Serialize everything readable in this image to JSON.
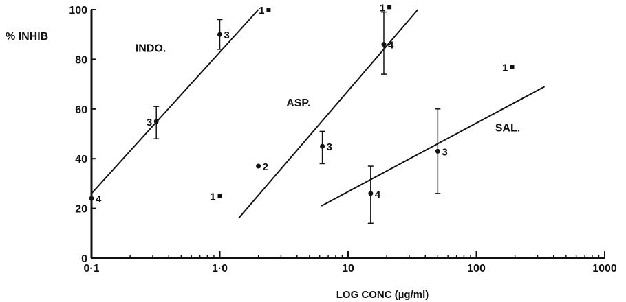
{
  "chart_data": {
    "type": "scatter",
    "x_scale": "log",
    "xlim": [
      0.1,
      1000
    ],
    "ylim": [
      0,
      100
    ],
    "xlabel": "LOG CONC (µg/ml)",
    "ylabel": "% INHIB",
    "x_tick_values": [
      0.1,
      1,
      10,
      100,
      1000
    ],
    "x_tick_labels": [
      "0·1",
      "1·0",
      "10",
      "100",
      "1000"
    ],
    "y_ticks": [
      0,
      20,
      40,
      60,
      80,
      100
    ],
    "grid": false,
    "series": [
      {
        "name": "INDO.",
        "points": [
          {
            "x": 0.1,
            "y": 24,
            "n": "4",
            "err": null
          },
          {
            "x": 0.32,
            "y": 55,
            "n": "3",
            "err": [
              48,
              61
            ]
          },
          {
            "x": 1.0,
            "y": 90,
            "n": "3",
            "err": [
              84,
              96
            ]
          },
          {
            "x": 2.4,
            "y": 100,
            "n": "1",
            "err": null
          }
        ],
        "fit": [
          [
            0.1,
            26
          ],
          [
            2.0,
            100
          ]
        ]
      },
      {
        "name": "ASP.",
        "points": [
          {
            "x": 1.0,
            "y": 25,
            "n": "1",
            "err": null
          },
          {
            "x": 2.0,
            "y": 37,
            "n": "2",
            "err": null
          },
          {
            "x": 6.3,
            "y": 45,
            "n": "3",
            "err": [
              38,
              51
            ]
          },
          {
            "x": 19,
            "y": 86,
            "n": "4",
            "err": [
              74,
              99
            ]
          },
          {
            "x": 21,
            "y": 101,
            "n": "1",
            "err": null
          }
        ],
        "fit": [
          [
            1.4,
            16
          ],
          [
            35,
            100
          ]
        ]
      },
      {
        "name": "SAL.",
        "points": [
          {
            "x": 15,
            "y": 26,
            "n": "4",
            "err": [
              14,
              37
            ]
          },
          {
            "x": 50,
            "y": 43,
            "n": "3",
            "err": [
              26,
              60
            ]
          },
          {
            "x": 190,
            "y": 77,
            "n": "1",
            "err": null
          }
        ],
        "fit": [
          [
            6.2,
            21
          ],
          [
            340,
            69
          ]
        ]
      }
    ]
  }
}
